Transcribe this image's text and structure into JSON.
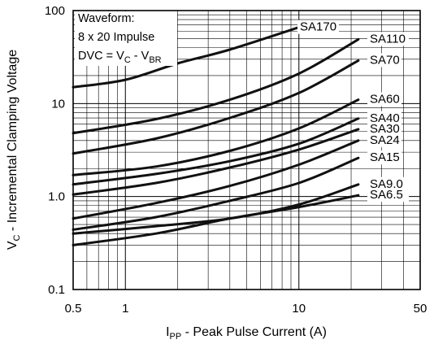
{
  "chart_data": {
    "type": "line",
    "xscale": "log",
    "yscale": "log",
    "xlim": [
      0.5,
      50
    ],
    "ylim": [
      0.1,
      100
    ],
    "grid": true,
    "xlabel": {
      "main": "I",
      "sub": "PP",
      "rest": " - Peak Pulse Current (A)"
    },
    "ylabel": {
      "main": "V",
      "sub": "C",
      "rest": " - Incremental Clamping Voltage"
    },
    "x_ticks": [
      {
        "value": 0.5,
        "label": "0.5"
      },
      {
        "value": 1,
        "label": "1"
      },
      {
        "value": 10,
        "label": "10"
      },
      {
        "value": 50,
        "label": "50"
      }
    ],
    "y_ticks": [
      {
        "value": 0.1,
        "label": "0.1"
      },
      {
        "value": 1,
        "label": "1.0"
      },
      {
        "value": 10,
        "label": "10"
      },
      {
        "value": 100,
        "label": "100"
      }
    ],
    "annotation": {
      "line1": "Waveform:",
      "line2": "8 x 20 Impulse",
      "line3_pre": "DVC = V",
      "line3_sub1": "C",
      "line3_mid": " - V",
      "line3_sub2": "BR"
    },
    "series": [
      {
        "name": "SA170",
        "x": [
          0.5,
          1,
          2,
          4,
          10
        ],
        "y": [
          15,
          18,
          27,
          38,
          66
        ]
      },
      {
        "name": "SA110",
        "x": [
          0.5,
          1.5,
          4,
          10,
          22
        ],
        "y": [
          4.8,
          6.8,
          11,
          21,
          49
        ]
      },
      {
        "name": "SA70",
        "x": [
          0.5,
          1.5,
          4,
          10,
          22
        ],
        "y": [
          2.9,
          4.2,
          7,
          13,
          29
        ]
      },
      {
        "name": "SA60",
        "x": [
          0.5,
          1.5,
          4,
          10,
          22
        ],
        "y": [
          1.7,
          2.1,
          3.1,
          5.4,
          11
        ]
      },
      {
        "name": "SA40",
        "x": [
          0.5,
          1.5,
          4,
          10,
          22
        ],
        "y": [
          1.35,
          1.75,
          2.4,
          3.7,
          6.9
        ]
      },
      {
        "name": "SA30",
        "x": [
          0.5,
          1.5,
          4,
          10,
          22
        ],
        "y": [
          1.05,
          1.4,
          2.05,
          3.2,
          5.3
        ]
      },
      {
        "name": "SA24",
        "x": [
          0.5,
          1.5,
          4,
          10,
          22
        ],
        "y": [
          0.58,
          0.85,
          1.3,
          2.2,
          4.0
        ]
      },
      {
        "name": "SA15",
        "x": [
          0.5,
          1.5,
          4,
          10,
          22
        ],
        "y": [
          0.44,
          0.6,
          0.9,
          1.4,
          2.6
        ]
      },
      {
        "name": "SA9.0",
        "x": [
          0.5,
          1.5,
          4,
          10,
          22
        ],
        "y": [
          0.4,
          0.48,
          0.58,
          0.82,
          1.35
        ]
      },
      {
        "name": "SA6.5",
        "x": [
          0.5,
          1.5,
          4,
          10,
          22
        ],
        "y": [
          0.3,
          0.4,
          0.58,
          0.77,
          1.03
        ]
      }
    ],
    "label_anchor_y": {
      "SA170": 66,
      "SA110": 49,
      "SA70": 29,
      "SA60": 11,
      "SA40": 6.9,
      "SA30": 5.3,
      "SA24": 4.0,
      "SA15": 2.6,
      "SA9.0": 1.35,
      "SA6.5": 1.03
    }
  }
}
